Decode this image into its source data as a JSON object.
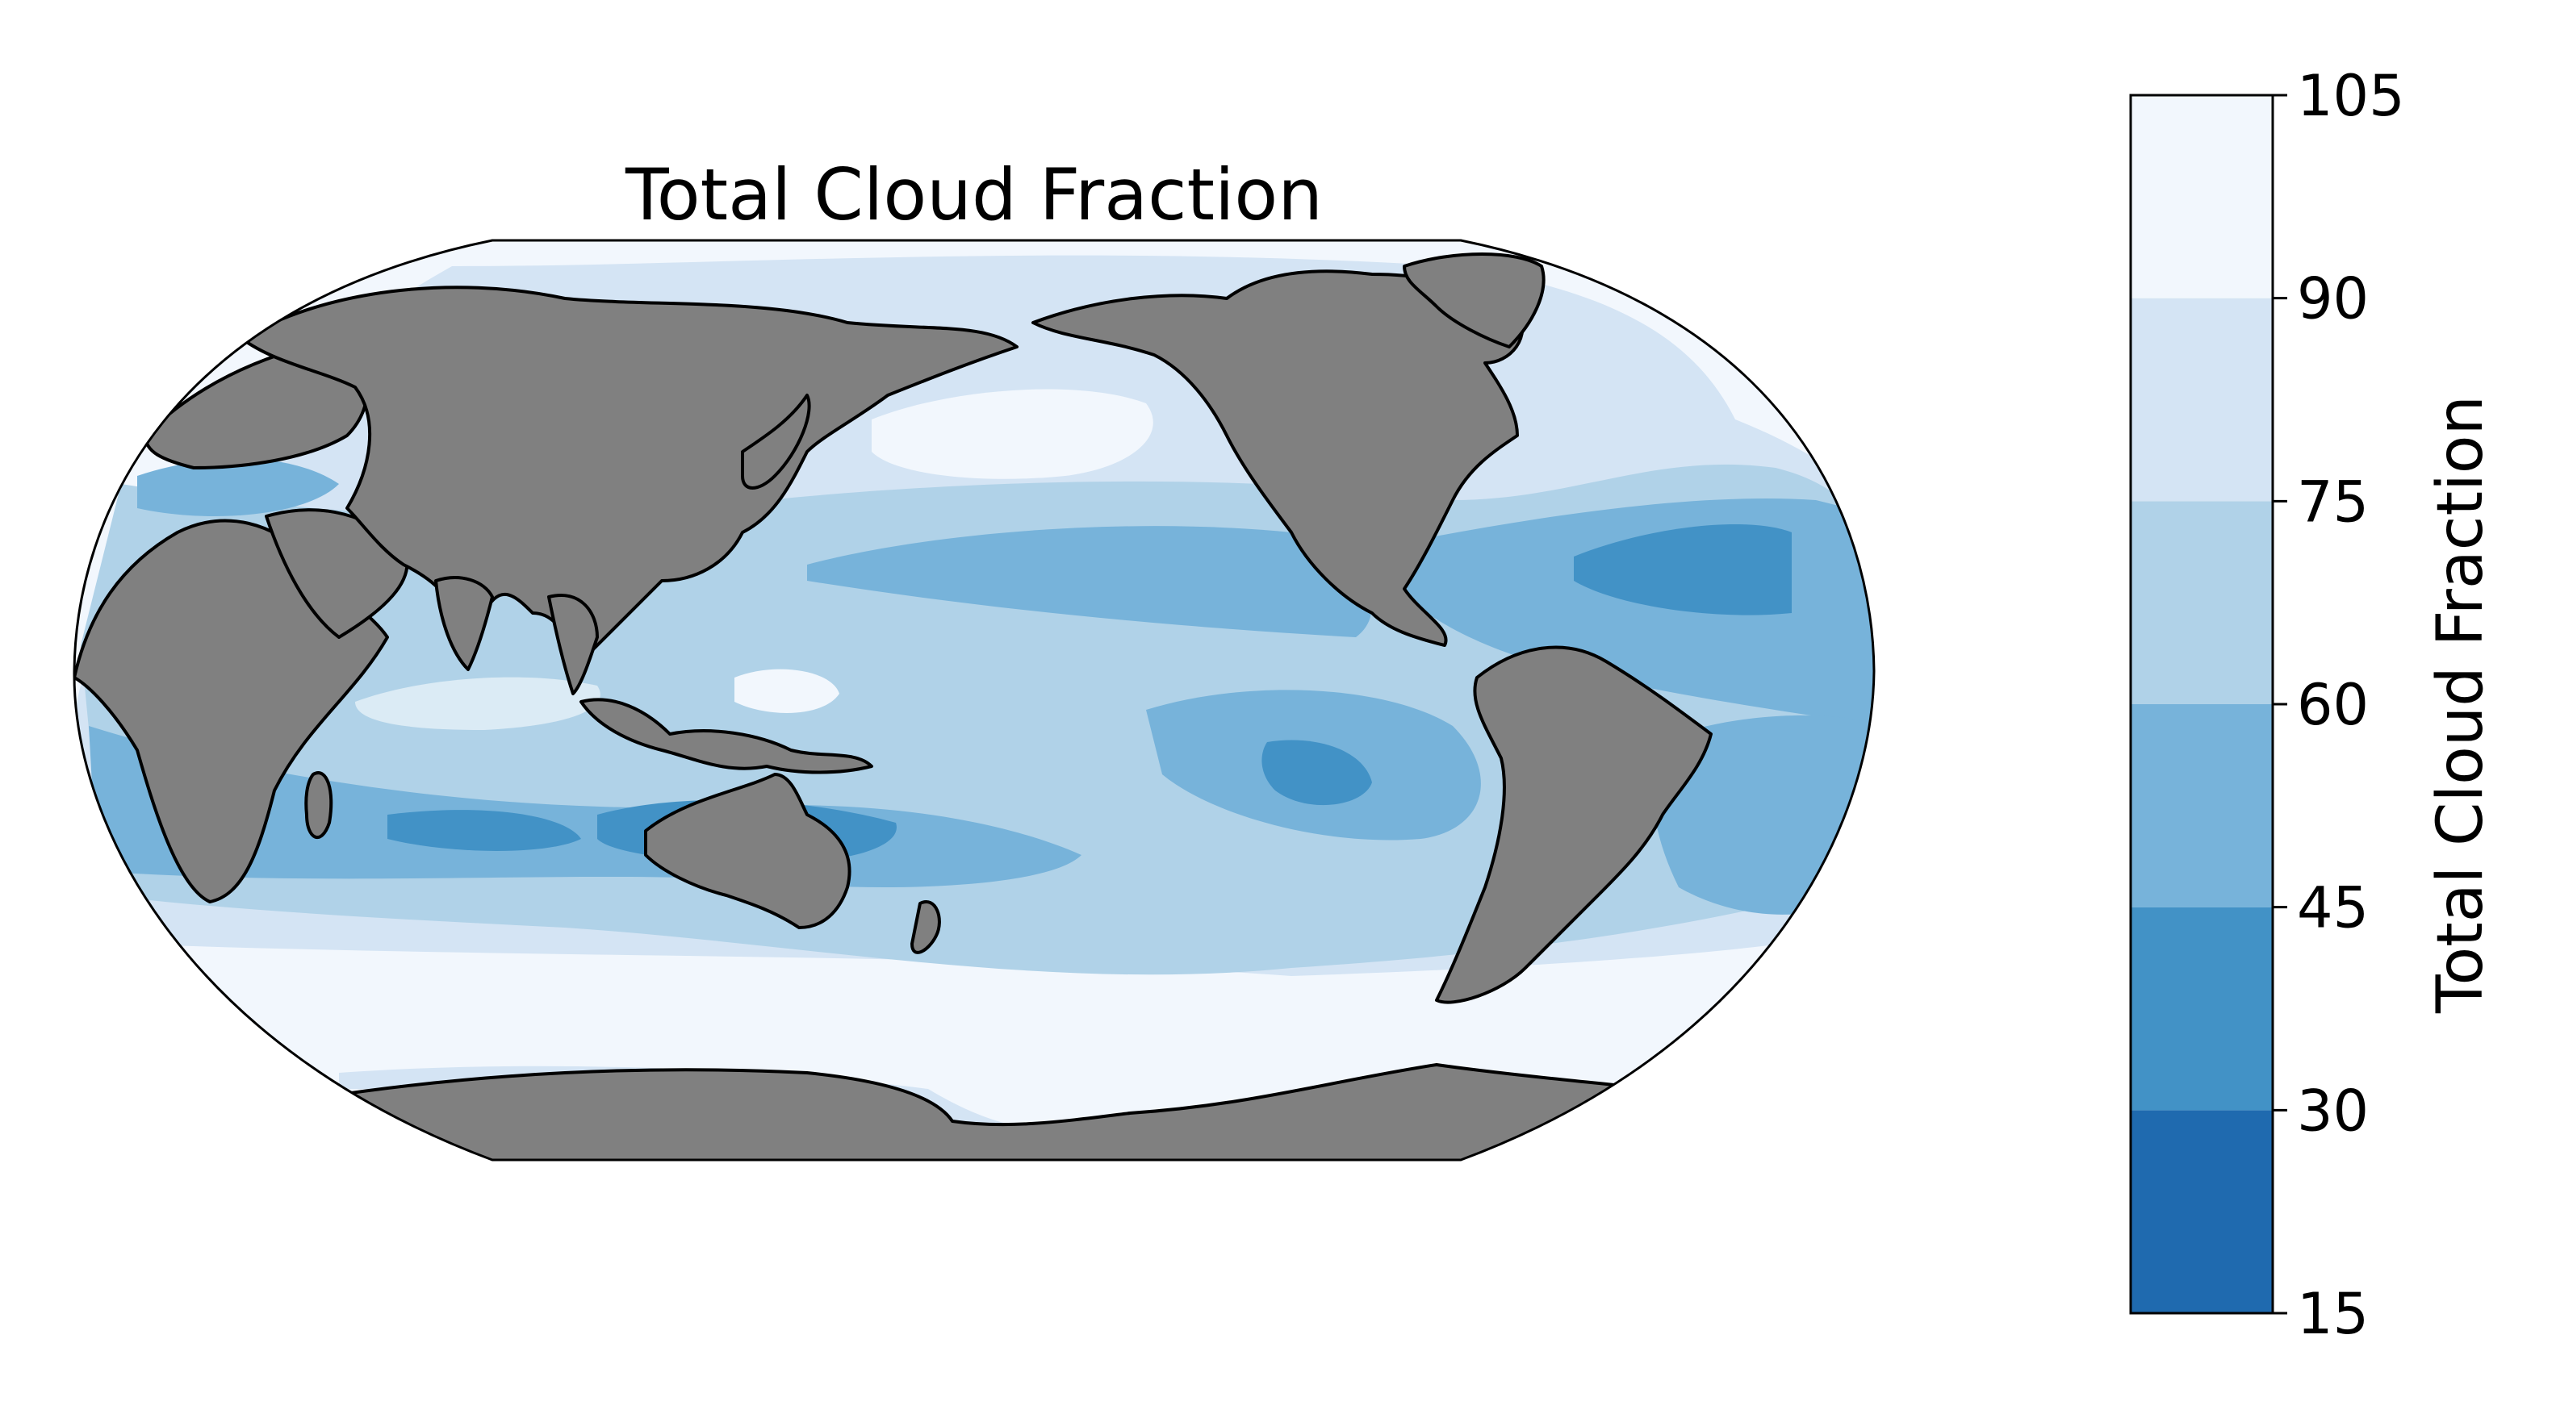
{
  "map": {
    "title": "Total Cloud Fraction",
    "projection": "robinson",
    "central_longitude": 180,
    "land_color": "#808080",
    "coastline_color": "#000000",
    "ocean_background": "#f2f7fd",
    "field_regions": [
      {
        "name": "north-pacific-high",
        "level": "90-105"
      },
      {
        "name": "southern-ocean-band",
        "level": "90-105"
      },
      {
        "name": "west-pacific-warm-pool",
        "level": "90-105"
      },
      {
        "name": "equatorial-pacific",
        "level": "60-75"
      },
      {
        "name": "indian-ocean-tropics",
        "level": "75-90"
      },
      {
        "name": "subtropical-south-pacific",
        "level": "45-60"
      },
      {
        "name": "south-east-pacific-minimum",
        "level": "30-45"
      },
      {
        "name": "north-atlantic-subtropics",
        "level": "30-45"
      },
      {
        "name": "south-indian-subtropics",
        "level": "30-45"
      },
      {
        "name": "mediterranean",
        "level": "45-60"
      }
    ]
  },
  "colorbar": {
    "label": "Total Cloud Fraction",
    "ticks": [
      "15",
      "30",
      "45",
      "60",
      "75",
      "90",
      "105"
    ],
    "levels": [
      15,
      30,
      45,
      60,
      75,
      90,
      105
    ],
    "colors": [
      "#1f6aaf",
      "#4292c6",
      "#77b3da",
      "#b0d2e8",
      "#d4e4f4",
      "#f2f7fd"
    ]
  }
}
